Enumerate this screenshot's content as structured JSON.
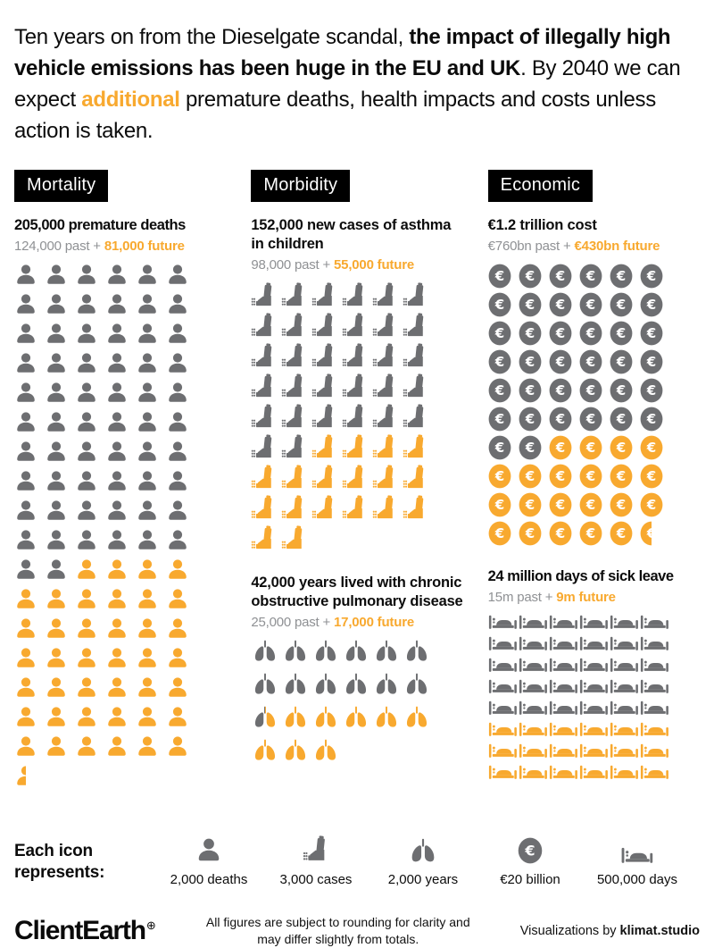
{
  "colors": {
    "accent": "#F8A92F",
    "icon_gray": "#6D6E71",
    "text_gray": "#8F9194",
    "black": "#0c0c0c"
  },
  "header": {
    "segments": [
      {
        "text": "Ten years on from the Dieselgate scandal, ",
        "style": "regular"
      },
      {
        "text": "the impact of illegally high vehicle emissions has been huge in the EU and UK",
        "style": "bold"
      },
      {
        "text": ". By 2040 we can expect ",
        "style": "regular"
      },
      {
        "text": "additional",
        "style": "accent"
      },
      {
        "text": " premature deaths, health impacts and costs unless action is taken.",
        "style": "regular"
      }
    ]
  },
  "sections": {
    "mortality": {
      "tag": "Mortality",
      "title": "205,000 premature deaths",
      "past": "124,000 past + ",
      "future": "81,000 future"
    },
    "morbidity": {
      "tag": "Morbidity",
      "asthma": {
        "title": "152,000 new cases of asthma in children",
        "past": "98,000 past + ",
        "future": "55,000 future"
      },
      "copd": {
        "title": "42,000 years lived with chronic obstructive pulmonary disease",
        "past": "25,000 past + ",
        "future": "17,000 future"
      }
    },
    "economic": {
      "tag": "Economic",
      "cost": {
        "title": "€1.2 trillion cost",
        "past": "€760bn past + ",
        "future": "€430bn future"
      },
      "sickleave": {
        "title": "24 million days of sick leave",
        "past": "15m past + ",
        "future": "9m future"
      }
    }
  },
  "chart_data": [
    {
      "id": "mortality",
      "type": "pictogram",
      "icon": "person",
      "title": "205,000 premature deaths",
      "unit_label": "2,000 deaths",
      "unit_value": 2000,
      "columns": 7,
      "series": [
        {
          "name": "past",
          "value": 124000,
          "color": "#6D6E71"
        },
        {
          "name": "future",
          "value": 81000,
          "color": "#F8A92F"
        }
      ],
      "past_icons": 62,
      "future_icons": 40.5
    },
    {
      "id": "asthma",
      "type": "pictogram",
      "icon": "inhaler",
      "title": "152,000 new cases of asthma in children",
      "unit_label": "3,000 cases",
      "unit_value": 3000,
      "columns": 7,
      "series": [
        {
          "name": "past",
          "value": 98000,
          "color": "#6D6E71"
        },
        {
          "name": "future",
          "value": 55000,
          "color": "#F8A92F"
        }
      ],
      "past_icons": 32,
      "future_icons": 18
    },
    {
      "id": "copd",
      "type": "pictogram",
      "icon": "lungs",
      "title": "42,000 years lived with chronic obstructive pulmonary disease",
      "unit_label": "2,000 years",
      "unit_value": 2000,
      "columns": 7,
      "series": [
        {
          "name": "past",
          "value": 25000,
          "color": "#6D6E71"
        },
        {
          "name": "future",
          "value": 17000,
          "color": "#F8A92F"
        }
      ],
      "past_icons": 12.5,
      "future_icons": 8.5
    },
    {
      "id": "economic",
      "type": "pictogram",
      "icon": "euro",
      "title": "€1.2 trillion cost",
      "unit_label": "€20 billion",
      "unit_value": 20,
      "columns": 7,
      "series": [
        {
          "name": "past",
          "value": 760,
          "color": "#6D6E71"
        },
        {
          "name": "future",
          "value": 430,
          "color": "#F8A92F"
        }
      ],
      "past_icons": 38,
      "future_icons": 21.5
    },
    {
      "id": "sickleave",
      "type": "pictogram",
      "icon": "bed",
      "title": "24 million days of sick leave",
      "unit_label": "500,000 days",
      "unit_value": 500000,
      "columns": 7,
      "series": [
        {
          "name": "past",
          "value": 15000000,
          "color": "#6D6E71"
        },
        {
          "name": "future",
          "value": 9000000,
          "color": "#F8A92F"
        }
      ],
      "past_icons": 30,
      "future_icons": 18
    }
  ],
  "legend": {
    "label": "Each icon represents:",
    "items": [
      {
        "icon": "person",
        "label": "2,000 deaths"
      },
      {
        "icon": "inhaler",
        "label": "3,000 cases"
      },
      {
        "icon": "lungs",
        "label": "2,000 years"
      },
      {
        "icon": "euro",
        "label": "€20 billion"
      },
      {
        "icon": "bed",
        "label": "500,000 days"
      }
    ]
  },
  "footer": {
    "logo": "ClientEarth",
    "logo_mark": "⊕",
    "note": "All figures are subject to rounding for clarity and may differ slightly from totals.",
    "credit_prefix": "Visualizations by ",
    "credit_name": "klimat.studio"
  }
}
